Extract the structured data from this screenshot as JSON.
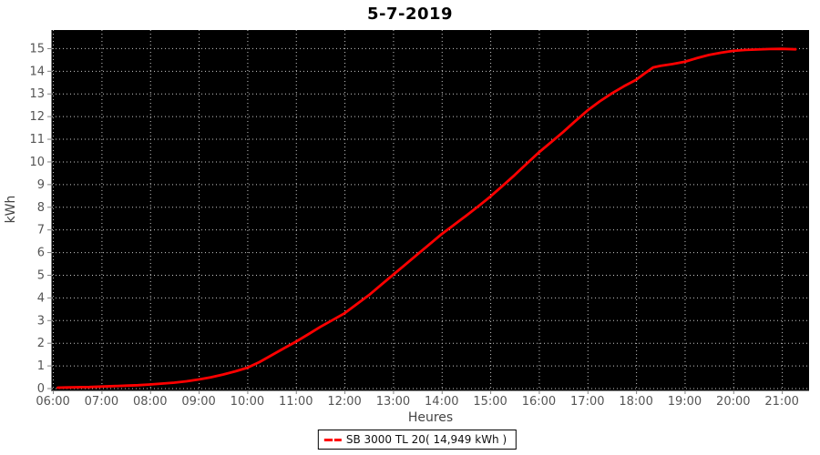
{
  "title": "5-7-2019",
  "y_axis_label": "kWh",
  "x_axis_label": "Heures",
  "legend": {
    "position": "bottom",
    "items": [
      {
        "label": "SB 3000 TL 20( 14,949 kWh )",
        "color": "#ff0000",
        "marker": "red-line"
      }
    ]
  },
  "chart_data": {
    "type": "line",
    "title": "5-7-2019",
    "xlabel": "Heures",
    "ylabel": "kWh",
    "grid": true,
    "legend_position": "bottom",
    "x_range": [
      5.98,
      21.56
    ],
    "y_range": [
      -0.1,
      15.8
    ],
    "x_ticks": [
      {
        "value": 6,
        "label": "06:00"
      },
      {
        "value": 7,
        "label": "07:00"
      },
      {
        "value": 8,
        "label": "08:00"
      },
      {
        "value": 9,
        "label": "09:00"
      },
      {
        "value": 10,
        "label": "10:00"
      },
      {
        "value": 11,
        "label": "11:00"
      },
      {
        "value": 12,
        "label": "12:00"
      },
      {
        "value": 13,
        "label": "13:00"
      },
      {
        "value": 14,
        "label": "14:00"
      },
      {
        "value": 15,
        "label": "15:00"
      },
      {
        "value": 16,
        "label": "16:00"
      },
      {
        "value": 17,
        "label": "17:00"
      },
      {
        "value": 18,
        "label": "18:00"
      },
      {
        "value": 19,
        "label": "19:00"
      },
      {
        "value": 20,
        "label": "20:00"
      },
      {
        "value": 21,
        "label": "21:00"
      }
    ],
    "y_ticks": [
      0,
      1,
      2,
      3,
      4,
      5,
      6,
      7,
      8,
      9,
      10,
      11,
      12,
      13,
      14,
      15
    ],
    "colors": {
      "plot_bg": "#000000",
      "grid": "#c8c8c8",
      "axis": "#808080",
      "tick_label": "#555555",
      "line": "#ff0000"
    },
    "series": [
      {
        "name": "SB 3000 TL 20",
        "total_label": "14,949 kWh",
        "unit": "kWh",
        "points": [
          [
            6.1,
            0.02
          ],
          [
            6.25,
            0.03
          ],
          [
            6.5,
            0.04
          ],
          [
            6.75,
            0.05
          ],
          [
            7.0,
            0.07
          ],
          [
            7.25,
            0.09
          ],
          [
            7.5,
            0.11
          ],
          [
            7.75,
            0.13
          ],
          [
            8.0,
            0.16
          ],
          [
            8.25,
            0.2
          ],
          [
            8.5,
            0.24
          ],
          [
            8.75,
            0.3
          ],
          [
            9.0,
            0.38
          ],
          [
            9.25,
            0.48
          ],
          [
            9.5,
            0.6
          ],
          [
            9.75,
            0.74
          ],
          [
            10.0,
            0.9
          ],
          [
            10.25,
            1.15
          ],
          [
            10.5,
            1.45
          ],
          [
            10.75,
            1.75
          ],
          [
            11.0,
            2.05
          ],
          [
            11.25,
            2.37
          ],
          [
            11.5,
            2.7
          ],
          [
            11.75,
            3.0
          ],
          [
            12.0,
            3.3
          ],
          [
            12.25,
            3.7
          ],
          [
            12.5,
            4.1
          ],
          [
            12.75,
            4.55
          ],
          [
            13.0,
            5.0
          ],
          [
            13.25,
            5.45
          ],
          [
            13.5,
            5.9
          ],
          [
            13.75,
            6.35
          ],
          [
            14.0,
            6.8
          ],
          [
            14.25,
            7.2
          ],
          [
            14.5,
            7.6
          ],
          [
            14.75,
            8.02
          ],
          [
            15.0,
            8.45
          ],
          [
            15.25,
            8.92
          ],
          [
            15.5,
            9.4
          ],
          [
            15.75,
            9.9
          ],
          [
            16.0,
            10.4
          ],
          [
            16.25,
            10.85
          ],
          [
            16.5,
            11.3
          ],
          [
            16.75,
            11.78
          ],
          [
            17.0,
            12.25
          ],
          [
            17.25,
            12.65
          ],
          [
            17.5,
            13.0
          ],
          [
            17.75,
            13.32
          ],
          [
            18.0,
            13.6
          ],
          [
            18.2,
            13.92
          ],
          [
            18.35,
            14.15
          ],
          [
            18.5,
            14.22
          ],
          [
            18.75,
            14.3
          ],
          [
            19.0,
            14.4
          ],
          [
            19.25,
            14.56
          ],
          [
            19.5,
            14.7
          ],
          [
            19.75,
            14.8
          ],
          [
            20.0,
            14.88
          ],
          [
            20.25,
            14.92
          ],
          [
            20.5,
            14.94
          ],
          [
            20.75,
            14.96
          ],
          [
            21.0,
            14.97
          ],
          [
            21.28,
            14.95
          ]
        ]
      }
    ]
  }
}
